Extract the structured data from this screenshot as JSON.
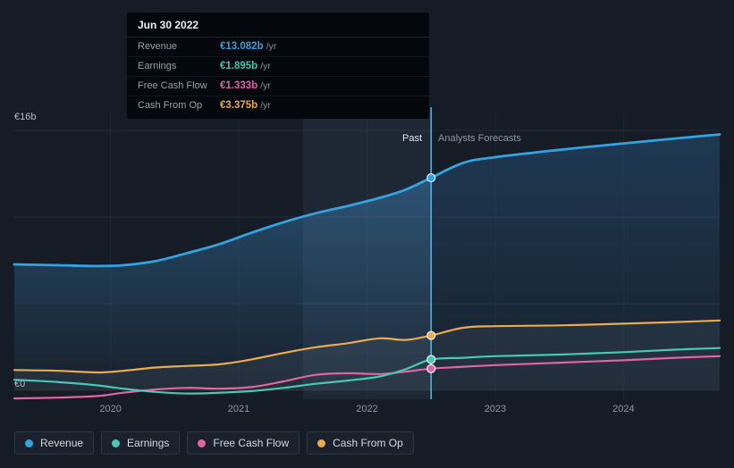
{
  "tooltip": {
    "date": "Jun 30 2022",
    "rows": [
      {
        "label": "Revenue",
        "value": "€13.082b",
        "suffix": "/yr",
        "color": "#35a2e0"
      },
      {
        "label": "Earnings",
        "value": "€1.895b",
        "suffix": "/yr",
        "color": "#45c8b4"
      },
      {
        "label": "Free Cash Flow",
        "value": "€1.333b",
        "suffix": "/yr",
        "color": "#e263a6"
      },
      {
        "label": "Cash From Op",
        "value": "€3.375b",
        "suffix": "/yr",
        "color": "#e9aa50"
      }
    ]
  },
  "axis": {
    "y_top_label": "€16b",
    "y_zero_label": "€0"
  },
  "labels": {
    "past": "Past",
    "forecast": "Analysts Forecasts"
  },
  "legend": {
    "items": [
      {
        "label": "Revenue",
        "color": "#35a2e0"
      },
      {
        "label": "Earnings",
        "color": "#45c8b4"
      },
      {
        "label": "Free Cash Flow",
        "color": "#e263a6"
      },
      {
        "label": "Cash From Op",
        "color": "#e9aa50"
      }
    ]
  },
  "chart_data": {
    "type": "line",
    "x_unit": "year",
    "x_range": [
      2019.25,
      2024.75
    ],
    "x_ticks": [
      2020,
      2021,
      2022,
      2023,
      2024
    ],
    "y_axis": {
      "top_value_b": 16,
      "top_label": "€16b",
      "zero_label": "€0",
      "gridline_divisions": 3
    },
    "divider_x": 2022.5,
    "divider_date": "Jun 30 2022",
    "highlight_band": [
      2021.5,
      2022.5
    ],
    "forecast_start_index": 13,
    "x": [
      2019.25,
      2019.6,
      2019.9,
      2020.1,
      2020.35,
      2020.6,
      2020.85,
      2021.1,
      2021.35,
      2021.6,
      2021.85,
      2022.1,
      2022.3,
      2022.5,
      2022.75,
      2023.0,
      2023.5,
      2024.0,
      2024.4,
      2024.75
    ],
    "series": [
      {
        "name": "Revenue",
        "role": "revenue",
        "color": "#35a2e0",
        "unit": "EUR b/yr",
        "values": [
          7.75,
          7.7,
          7.65,
          7.7,
          7.95,
          8.45,
          9.0,
          9.7,
          10.35,
          10.9,
          11.35,
          11.85,
          12.35,
          13.082,
          14.0,
          14.35,
          14.8,
          15.2,
          15.5,
          15.75
        ],
        "value_at_divider_b": 13.082
      },
      {
        "name": "Earnings",
        "role": "earnings",
        "color": "#45c8b4",
        "unit": "EUR b/yr",
        "values": [
          0.65,
          0.5,
          0.3,
          0.1,
          -0.1,
          -0.2,
          -0.15,
          -0.05,
          0.15,
          0.4,
          0.6,
          0.85,
          1.3,
          1.895,
          2.0,
          2.1,
          2.2,
          2.35,
          2.5,
          2.6
        ],
        "value_at_divider_b": 1.895
      },
      {
        "name": "Free Cash Flow",
        "role": "fcf",
        "color": "#e263a6",
        "unit": "EUR b/yr",
        "values": [
          -0.5,
          -0.45,
          -0.35,
          -0.15,
          0.05,
          0.15,
          0.1,
          0.2,
          0.55,
          0.95,
          1.05,
          1.0,
          1.15,
          1.333,
          1.45,
          1.55,
          1.7,
          1.85,
          2.0,
          2.1
        ],
        "value_at_divider_b": 1.333
      },
      {
        "name": "Cash From Op",
        "role": "cashop",
        "color": "#e9aa50",
        "unit": "EUR b/yr",
        "values": [
          1.25,
          1.2,
          1.1,
          1.2,
          1.4,
          1.5,
          1.6,
          1.9,
          2.3,
          2.65,
          2.9,
          3.2,
          3.1,
          3.375,
          3.85,
          3.95,
          4.0,
          4.1,
          4.2,
          4.3
        ],
        "value_at_divider_b": 3.375
      }
    ]
  }
}
